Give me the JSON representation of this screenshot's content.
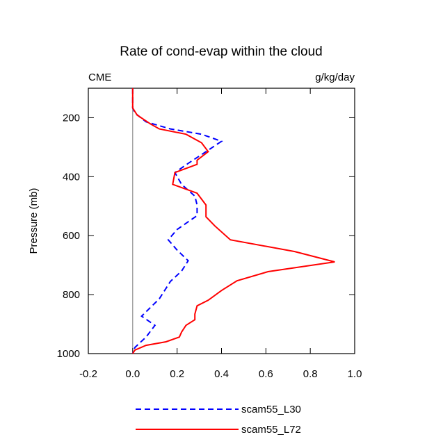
{
  "chart_data": {
    "type": "line",
    "title": "Rate of cond-evap within the cloud",
    "left_label": "CME",
    "right_label": "g/kg/day",
    "ylabel": "Pressure (mb)",
    "xlim": [
      -0.2,
      1.0
    ],
    "xticks": [
      -0.2,
      {
        "value": 0,
        "label": "0.0"
      },
      0.2,
      0.4,
      0.6,
      0.8,
      {
        "value": 1,
        "label": "1.0"
      }
    ],
    "ylim": [
      1000,
      100
    ],
    "yticks": [
      200,
      400,
      600,
      800,
      1000
    ],
    "reference_x": 0,
    "series": [
      {
        "name": "scam55_L30",
        "color": "#0000ff",
        "dash": true,
        "pressure": [
          100,
          167,
          184,
          214,
          238,
          256,
          280,
          315,
          355,
          386,
          426,
          466,
          496,
          532,
          579,
          614,
          649,
          685,
          720,
          755,
          814,
          873,
          904,
          944,
          979,
          1000
        ],
        "values": [
          0,
          0,
          0.01,
          0.06,
          0.17,
          0.31,
          0.4,
          0.33,
          0.25,
          0.19,
          0.22,
          0.28,
          0.29,
          0.29,
          0.2,
          0.16,
          0.2,
          0.25,
          0.22,
          0.17,
          0.12,
          0.04,
          0.1,
          0.06,
          0.01,
          0
        ]
      },
      {
        "name": "scam55_L72",
        "color": "#ff0000",
        "dash": false,
        "pressure": [
          100,
          167,
          191,
          221,
          238,
          256,
          285,
          315,
          344,
          358,
          386,
          426,
          456,
          496,
          536,
          567,
          614,
          654,
          689,
          722,
          753,
          786,
          819,
          838,
          866,
          885,
          904,
          927,
          944,
          960,
          972,
          988,
          1000
        ],
        "values": [
          0,
          0,
          0.02,
          0.08,
          0.12,
          0.24,
          0.31,
          0.34,
          0.29,
          0.29,
          0.19,
          0.18,
          0.29,
          0.33,
          0.33,
          0.37,
          0.44,
          0.73,
          0.91,
          0.61,
          0.47,
          0.4,
          0.34,
          0.29,
          0.28,
          0.28,
          0.24,
          0.22,
          0.21,
          0.15,
          0.06,
          0.01,
          0
        ]
      }
    ]
  }
}
